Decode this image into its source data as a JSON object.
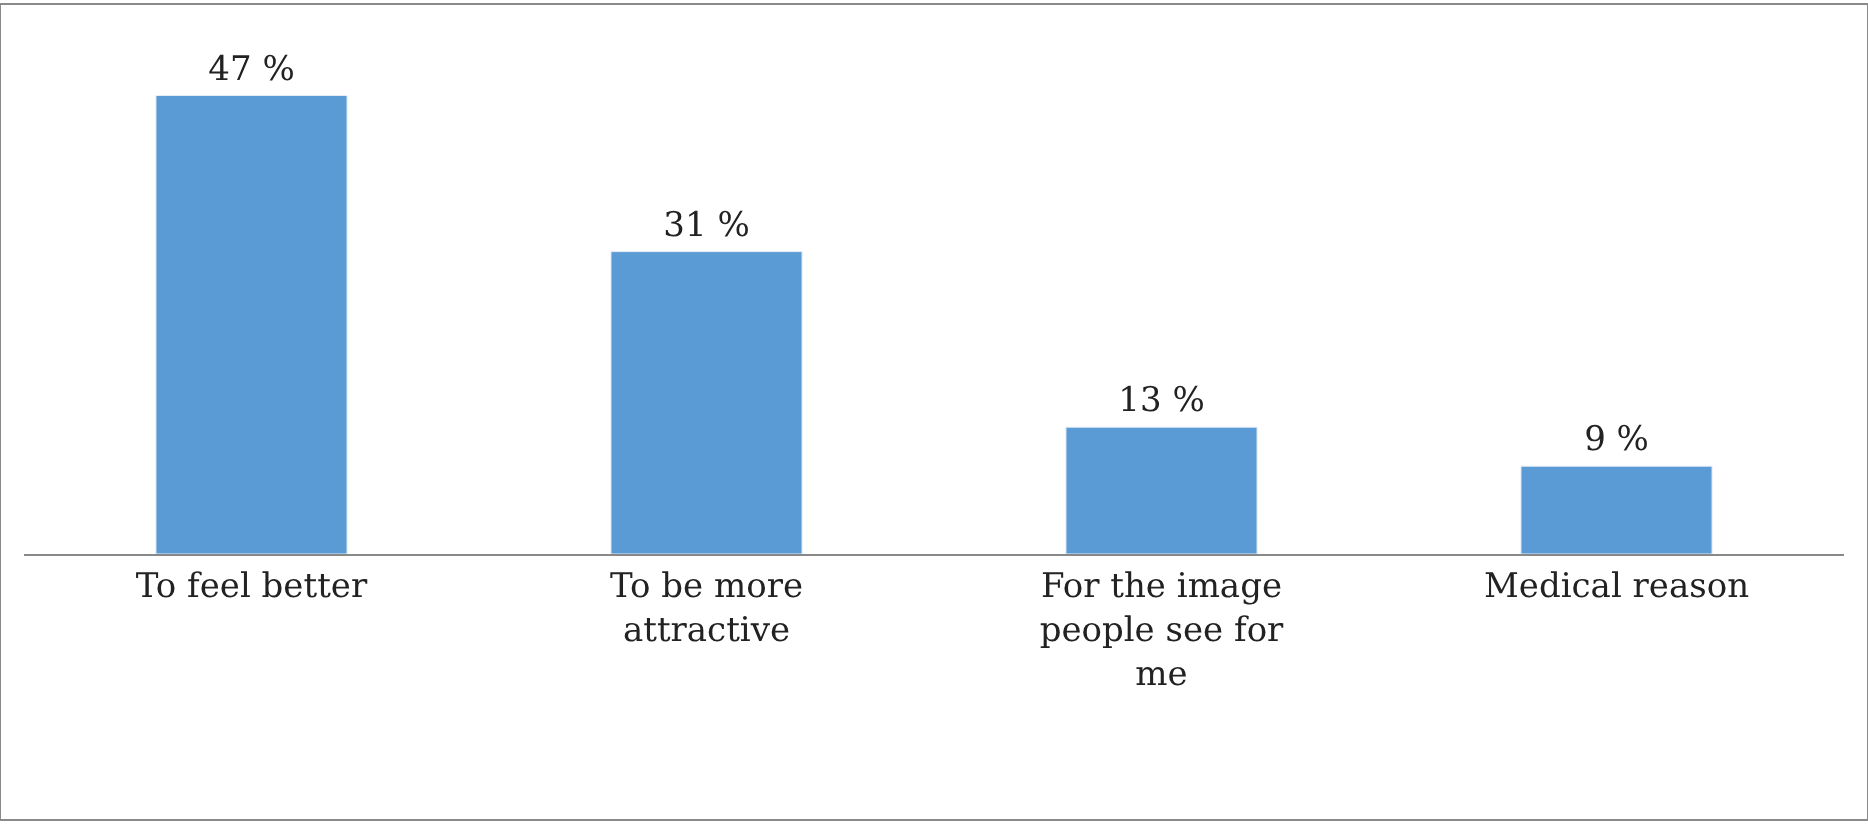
{
  "chart_data": {
    "type": "bar",
    "categories": [
      "To feel better",
      "To be more attractive",
      "For the image people see for me",
      "Medical reason"
    ],
    "values": [
      47,
      31,
      13,
      9
    ],
    "color": "#5b9bd5",
    "value_labels": [
      "47 %",
      "31 %",
      "13 %",
      "9 %"
    ]
  }
}
